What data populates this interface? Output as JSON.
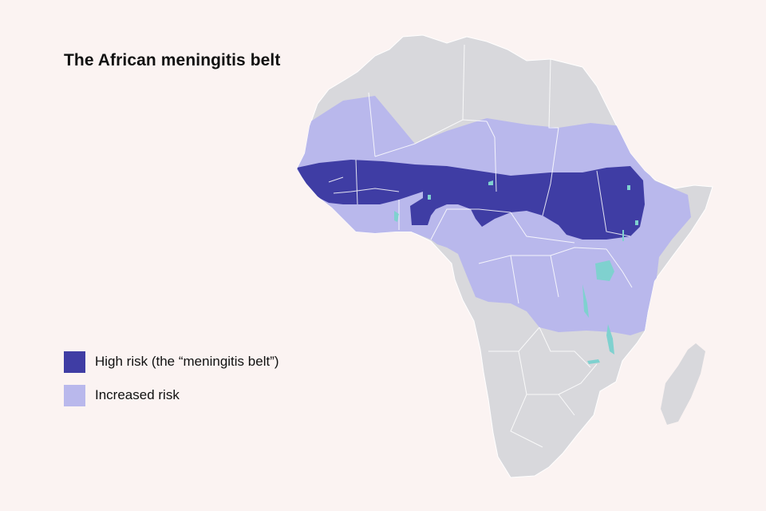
{
  "title": "The African meningitis belt",
  "colors": {
    "background": "#fbf3f2",
    "land": "#d8d8dc",
    "border": "#ffffff",
    "high_risk": "#3f3da4",
    "increased_risk": "#b9b8ec",
    "water": "#7fd1cf"
  },
  "legend": [
    {
      "label": "High risk (the “meningitis belt”)",
      "color": "#3f3da4"
    },
    {
      "label": "Increased risk",
      "color": "#b9b8ec"
    }
  ]
}
